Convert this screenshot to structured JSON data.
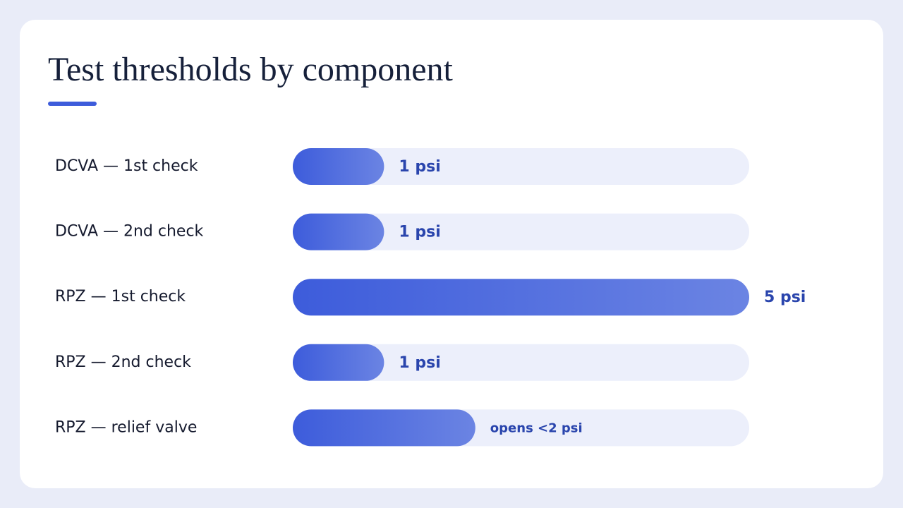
{
  "chart_data": {
    "type": "bar",
    "title": "Test thresholds by component",
    "categories": [
      "DCVA — 1st check",
      "DCVA — 2nd check",
      "RPZ — 1st check",
      "RPZ — 2nd check",
      "RPZ — relief valve"
    ],
    "values": [
      1,
      1,
      5,
      1,
      2
    ],
    "value_labels": [
      "1 psi",
      "1 psi",
      "5 psi",
      "1 psi",
      "opens <2 psi"
    ],
    "color": "#3d5cdb",
    "xlim": [
      0,
      5
    ]
  }
}
